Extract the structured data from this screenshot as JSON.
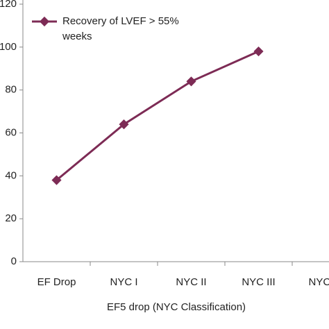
{
  "chart_data": {
    "type": "line",
    "x_label": "EF5 drop  (NYC Classification)",
    "categories": [
      "EF Drop",
      "NYC I",
      "NYC II",
      "NYC III",
      "NYC IV"
    ],
    "series": [
      {
        "name": "Recovery of LVEF > 55% weeks",
        "color": "#7d2b55",
        "values": [
          38,
          64,
          84,
          98,
          null
        ]
      }
    ],
    "ylim": [
      0,
      120
    ],
    "yticks": [
      0,
      20,
      40,
      60,
      80,
      100,
      120
    ],
    "legend": "upper left",
    "grid": false
  }
}
